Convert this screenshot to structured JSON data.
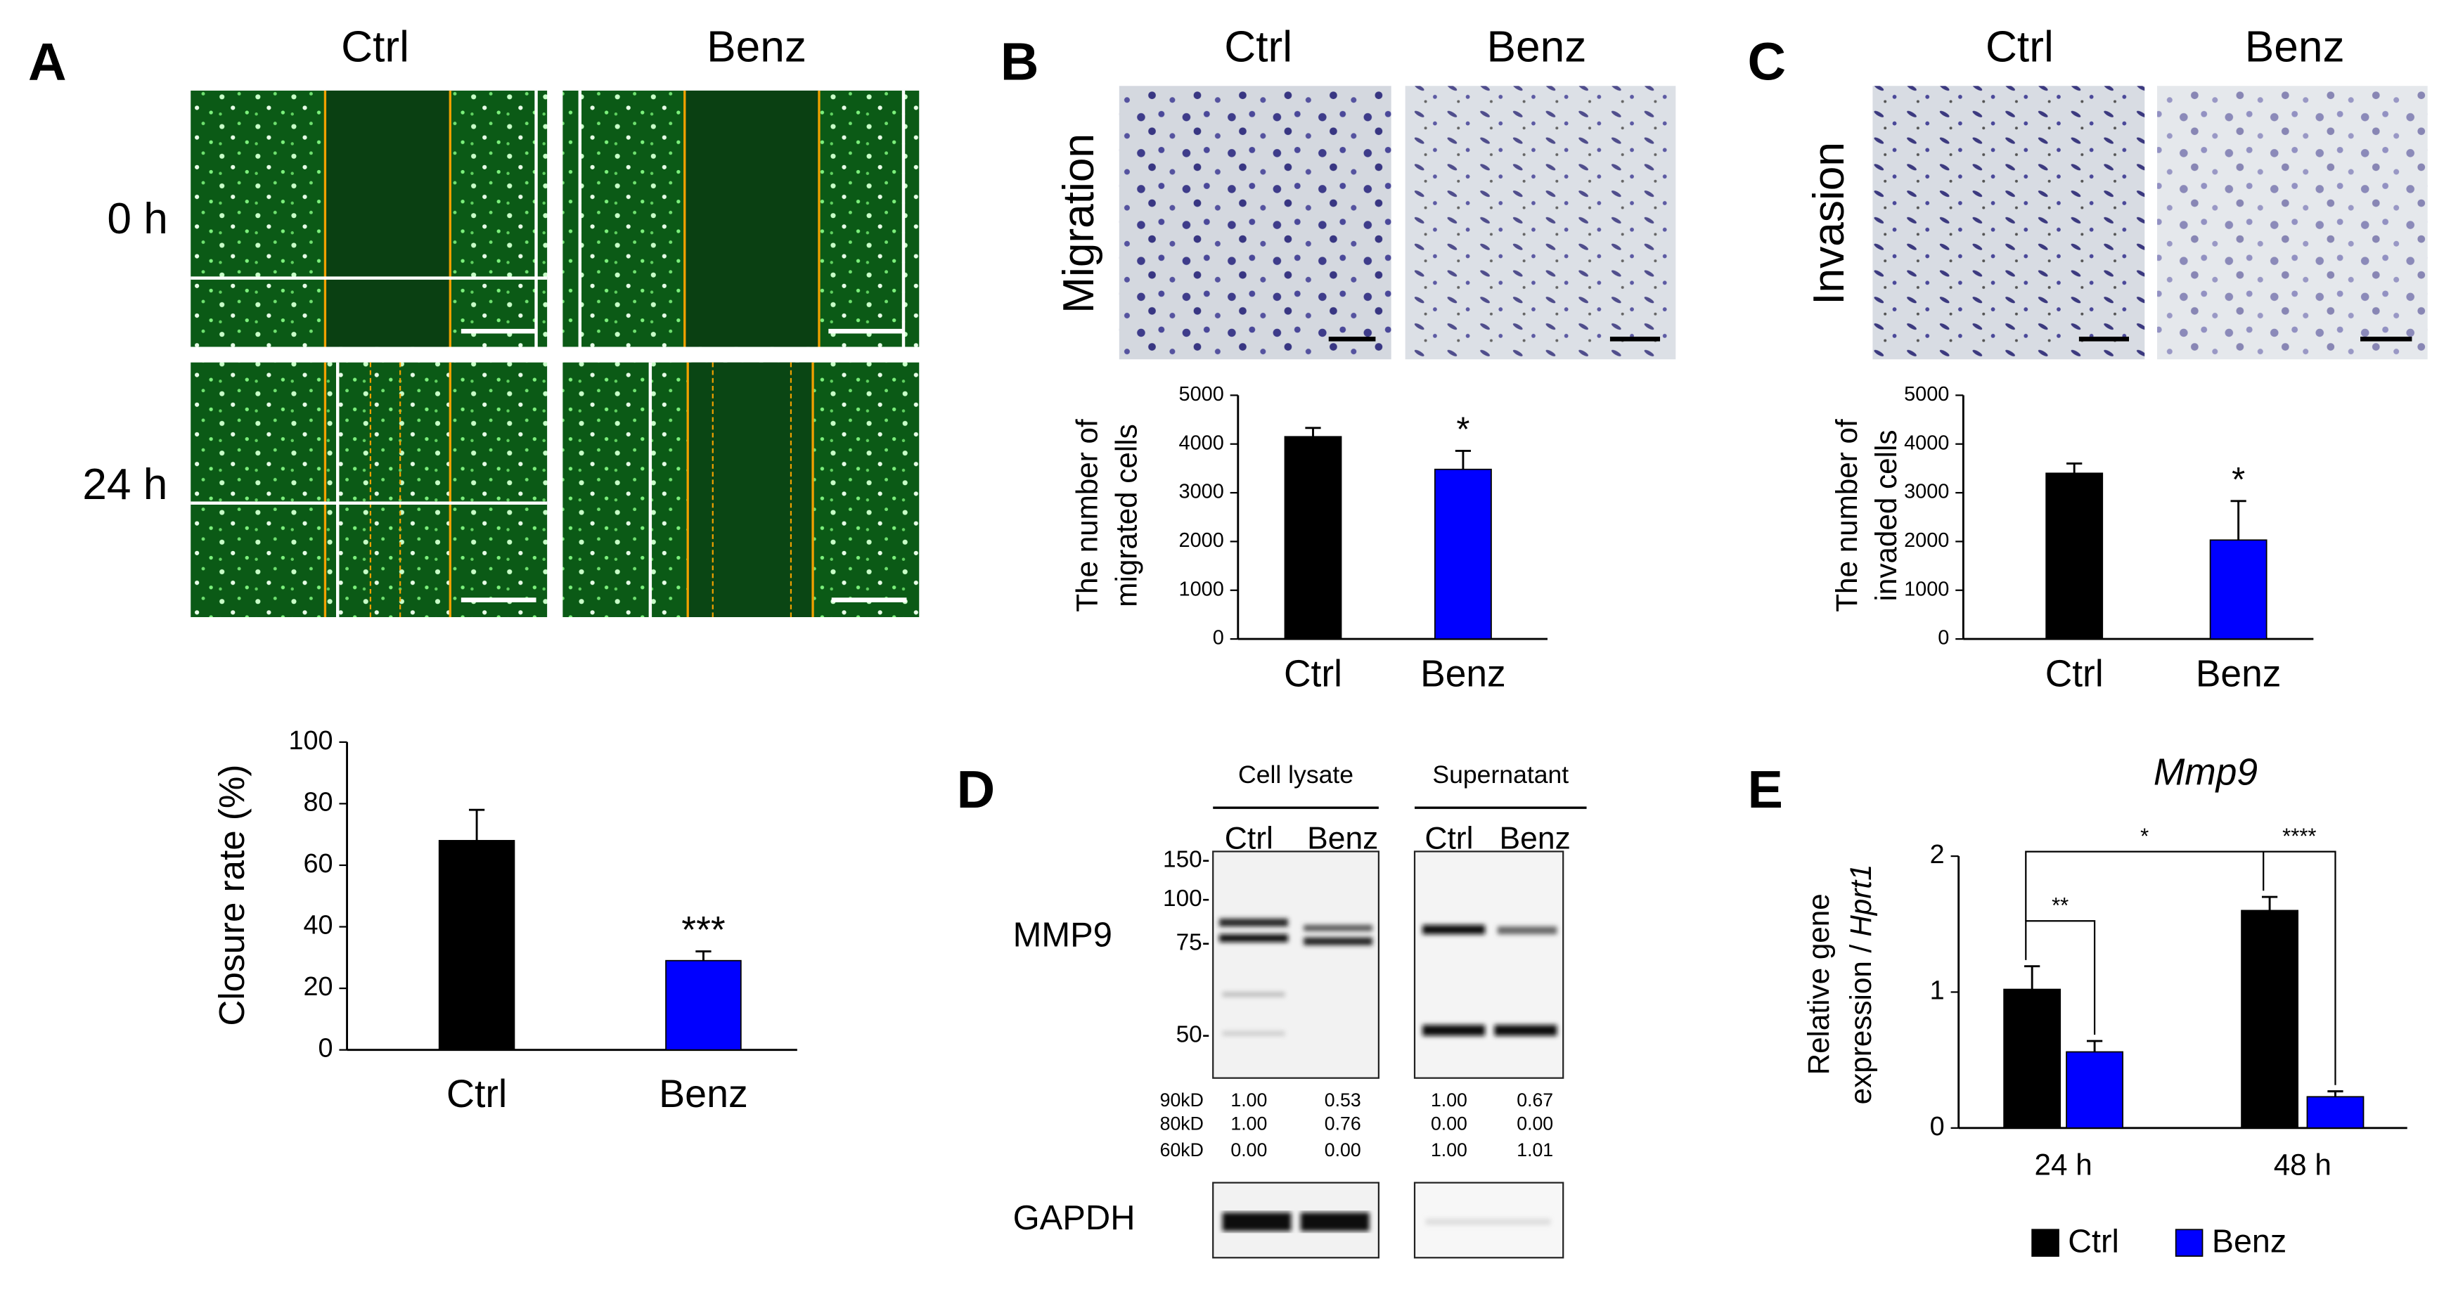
{
  "panels": [
    "A",
    "B",
    "C",
    "D",
    "E"
  ],
  "panel_a": {
    "columns": [
      "Ctrl",
      "Benz"
    ],
    "rows": [
      "0 h",
      "24 h"
    ]
  },
  "panel_b": {
    "columns": [
      "Ctrl",
      "Benz"
    ],
    "row": "Migration"
  },
  "panel_c": {
    "columns": [
      "Ctrl",
      "Benz"
    ],
    "row": "Invasion"
  },
  "blot": {
    "groups": [
      "Cell lysate",
      "Supernatant"
    ],
    "lanes": [
      "Ctrl",
      "Benz",
      "Ctrl",
      "Benz"
    ],
    "markers": [
      "150-",
      "100-",
      "75-",
      "50-"
    ],
    "proteins": [
      "MMP9",
      "GAPDH"
    ],
    "quant_labels": [
      "90kD",
      "80kD",
      "60kD"
    ],
    "quant": [
      [
        "1.00",
        "0.53",
        "1.00",
        "0.67"
      ],
      [
        "1.00",
        "0.76",
        "0.00",
        "0.00"
      ],
      [
        "0.00",
        "0.00",
        "1.00",
        "1.01"
      ]
    ]
  },
  "chart_data": [
    {
      "type": "bar",
      "ylabel": "Closure rate (%)",
      "categories": [
        "Ctrl",
        "Benz"
      ],
      "values": [
        68,
        29
      ],
      "errors": [
        10,
        3
      ],
      "colors": [
        "#000000",
        "#0000ff"
      ],
      "ylim": [
        0,
        100
      ],
      "yticks": [
        0,
        20,
        40,
        60,
        80,
        100
      ],
      "annotations": [
        "***"
      ]
    },
    {
      "type": "bar",
      "ylabel": [
        "The number of",
        "migrated cells"
      ],
      "categories": [
        "Ctrl",
        "Benz"
      ],
      "values": [
        4150,
        3480
      ],
      "errors": [
        180,
        380
      ],
      "colors": [
        "#000000",
        "#0000ff"
      ],
      "ylim": [
        0,
        5000
      ],
      "yticks": [
        0,
        1000,
        2000,
        3000,
        4000,
        5000
      ],
      "annotations": [
        "*"
      ]
    },
    {
      "type": "bar",
      "ylabel": [
        "The number of",
        "invaded cells"
      ],
      "categories": [
        "Ctrl",
        "Benz"
      ],
      "values": [
        3400,
        2030
      ],
      "errors": [
        200,
        800
      ],
      "colors": [
        "#000000",
        "#0000ff"
      ],
      "ylim": [
        0,
        5000
      ],
      "yticks": [
        0,
        1000,
        2000,
        3000,
        4000,
        5000
      ],
      "annotations": [
        "*"
      ]
    },
    {
      "type": "grouped",
      "title": "Mmp9",
      "ylabel": [
        "Relative gene",
        "expression /",
        "Hprt1"
      ],
      "categories": [
        "24 h",
        "48 h"
      ],
      "series": [
        {
          "name": "Ctrl",
          "color": "#000000",
          "values": [
            1.02,
            1.6
          ],
          "errors": [
            0.17,
            0.1
          ]
        },
        {
          "name": "Benz",
          "color": "#0000ff",
          "values": [
            0.56,
            0.23
          ],
          "errors": [
            0.08,
            0.04
          ]
        }
      ],
      "ylim": [
        0,
        2
      ],
      "yticks": [
        0,
        1,
        2
      ],
      "annotations": [
        "**",
        "****",
        "*"
      ]
    }
  ]
}
